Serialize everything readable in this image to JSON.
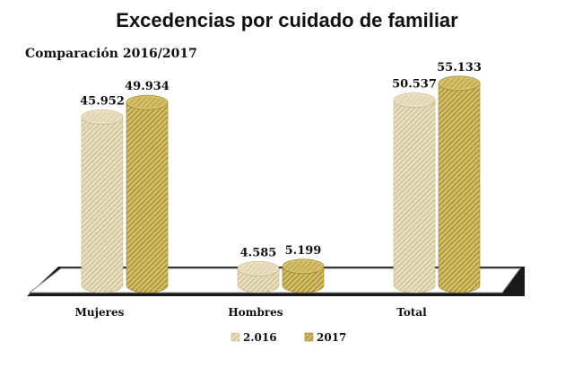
{
  "title": "Excedencias por cuidado de familiar",
  "subtitle": "Comparación 2016/2017",
  "colors": {
    "series_2016": "#ece2c4",
    "series_2016_dark": "#c9b98c",
    "series_2017": "#d8c36c",
    "series_2017_dark": "#9c8730"
  },
  "chart_data": {
    "type": "bar",
    "categories": [
      "Mujeres",
      "Hombres",
      "Total"
    ],
    "series": [
      {
        "name": "2.016",
        "values": [
          45952,
          4585,
          50537
        ],
        "labels": [
          "45.952",
          "4.585",
          "50.537"
        ]
      },
      {
        "name": "2017",
        "values": [
          49934,
          5199,
          55133
        ],
        "labels": [
          "49.934",
          "5.199",
          "55.133"
        ]
      }
    ],
    "ylim": [
      0,
      60000
    ],
    "legend": "bottom",
    "grid": false
  }
}
